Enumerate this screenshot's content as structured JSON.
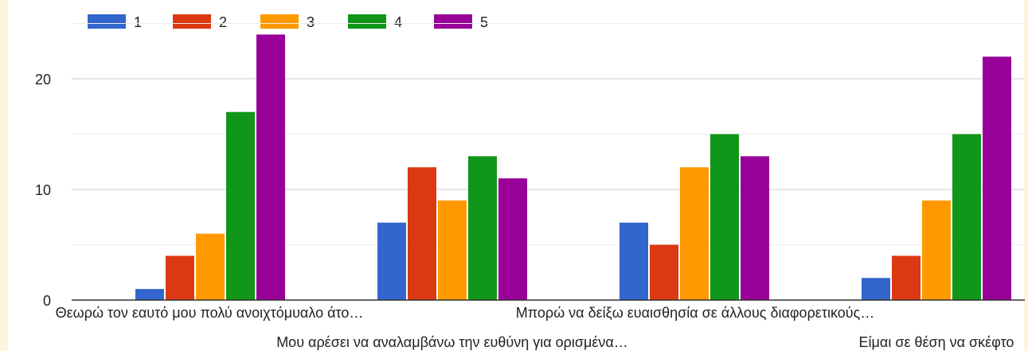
{
  "chart_data": {
    "type": "bar",
    "categories": [
      "Θεωρώ τον εαυτό μου πολύ ανοιχτόμυαλο άτο…",
      "Μου αρέσει να αναλαμβάνω την ευθύνη για ορισμένα…",
      "Μπορώ να δείξω ευαισθησία σε άλλους διαφορετικούς…",
      "Είμαι σε θέση να σκέφτο"
    ],
    "series": [
      {
        "name": "1",
        "color": "#3366cc",
        "values": [
          1,
          7,
          7,
          2
        ]
      },
      {
        "name": "2",
        "color": "#dc3912",
        "values": [
          4,
          12,
          5,
          4
        ]
      },
      {
        "name": "3",
        "color": "#ff9900",
        "values": [
          6,
          9,
          12,
          9
        ]
      },
      {
        "name": "4",
        "color": "#109618",
        "values": [
          17,
          13,
          15,
          15
        ]
      },
      {
        "name": "5",
        "color": "#990099",
        "values": [
          24,
          11,
          13,
          22
        ]
      }
    ],
    "yticks": [
      0,
      10,
      20
    ],
    "ylim": [
      0,
      25
    ],
    "grid": true,
    "legend_position": "top-left"
  }
}
